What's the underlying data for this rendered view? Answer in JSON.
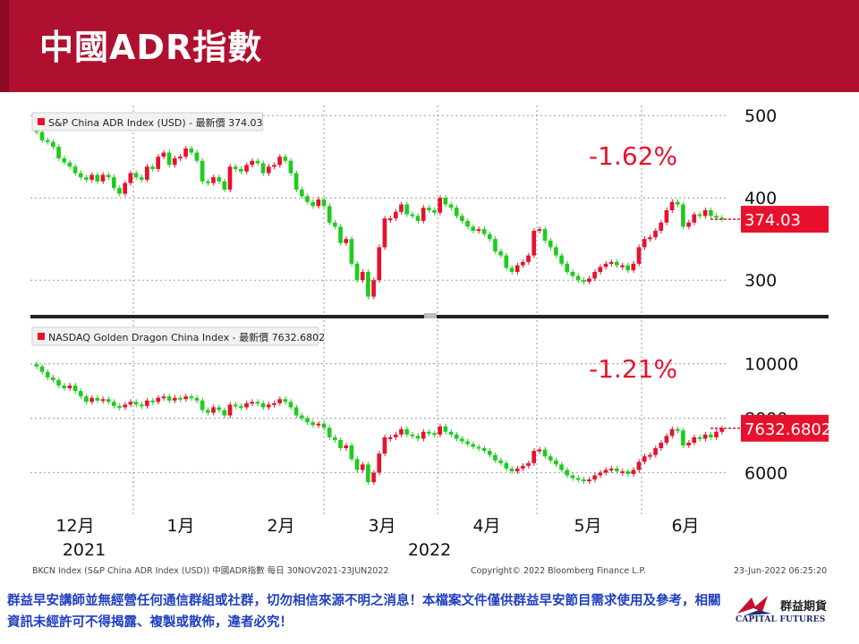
{
  "slide": {
    "title": "中國ADR指數",
    "footer_note": "群益早安講師並無經營任何通信群組或社群，切勿相信來源不明之消息！本檔案文件僅供群益早安節目需求使用及參考，相關資訊未經許可不得揭露、複製或散佈，違者必究！",
    "logo_cn": "群益期貨",
    "logo_en": "CAPITAL FUTURES"
  },
  "chart_data": [
    {
      "type": "candlestick",
      "legend": "S&P China ADR Index (USD) - 最新價 374.03",
      "last_value_label": "374.03",
      "change_annotation": "-1.62%",
      "ylim": [
        260,
        510
      ],
      "yticks": [
        300,
        400,
        500
      ],
      "ytick_labels": [
        "300",
        "400",
        "500"
      ],
      "close": [
        480,
        470,
        468,
        462,
        448,
        443,
        438,
        430,
        425,
        422,
        428,
        420,
        428,
        425,
        412,
        405,
        418,
        430,
        425,
        422,
        438,
        435,
        450,
        455,
        440,
        448,
        450,
        460,
        455,
        445,
        420,
        418,
        425,
        420,
        410,
        438,
        435,
        432,
        440,
        445,
        442,
        430,
        438,
        440,
        450,
        445,
        430,
        410,
        402,
        395,
        390,
        398,
        390,
        370,
        365,
        345,
        350,
        320,
        300,
        310,
        280,
        300,
        340,
        375,
        375,
        383,
        392,
        380,
        378,
        372,
        388,
        385,
        382,
        400,
        392,
        388,
        378,
        372,
        365,
        360,
        362,
        356,
        350,
        335,
        330,
        315,
        310,
        318,
        322,
        330,
        360,
        362,
        348,
        340,
        330,
        320,
        310,
        305,
        300,
        298,
        302,
        310,
        316,
        320,
        322,
        318,
        318,
        312,
        320,
        340,
        350,
        352,
        360,
        370,
        385,
        395,
        392,
        365,
        370,
        380,
        378,
        385,
        378,
        376,
        374
      ],
      "x_month_labels": [
        "12月",
        "1月",
        "2月",
        "3月",
        "4月",
        "5月",
        "6月"
      ],
      "x_year_labels": [
        "2021",
        "2022"
      ]
    },
    {
      "type": "candlestick",
      "legend": "NASDAQ Golden Dragon China Index - 最新價 7632.6802",
      "last_value_label": "7632.6802",
      "change_annotation": "-1.21%",
      "ylim": [
        4700,
        11600
      ],
      "yticks": [
        6000,
        8000,
        10000
      ],
      "ytick_labels": [
        "6000",
        "8000",
        "10000"
      ],
      "close": [
        9900,
        9700,
        9500,
        9400,
        9200,
        9100,
        9200,
        9000,
        8800,
        8600,
        8750,
        8650,
        8700,
        8600,
        8450,
        8400,
        8500,
        8600,
        8500,
        8450,
        8650,
        8600,
        8750,
        8800,
        8650,
        8750,
        8700,
        8800,
        8750,
        8650,
        8300,
        8200,
        8400,
        8300,
        8100,
        8500,
        8450,
        8400,
        8550,
        8600,
        8550,
        8400,
        8500,
        8550,
        8700,
        8600,
        8400,
        8100,
        8000,
        7850,
        7750,
        7800,
        7650,
        7300,
        7200,
        6900,
        7000,
        6500,
        6100,
        6300,
        5650,
        6000,
        6700,
        7300,
        7300,
        7400,
        7600,
        7400,
        7350,
        7250,
        7500,
        7450,
        7400,
        7700,
        7500,
        7400,
        7250,
        7150,
        7050,
        6950,
        6900,
        6800,
        6650,
        6450,
        6350,
        6150,
        6050,
        6150,
        6250,
        6350,
        6800,
        6850,
        6600,
        6450,
        6300,
        6100,
        5900,
        5800,
        5750,
        5700,
        5750,
        5900,
        6000,
        6100,
        6150,
        6050,
        6050,
        5950,
        6100,
        6400,
        6600,
        6650,
        6900,
        7100,
        7350,
        7600,
        7550,
        7000,
        7100,
        7300,
        7250,
        7400,
        7300,
        7500,
        7632
      ]
    }
  ],
  "source_left": "BKCN Index (S&P China ADR Index (USD)) 中國ADR指數  每日 30NOV2021-23JUN2022",
  "source_center": "Copyright© 2022 Bloomberg Finance L.P.",
  "source_right": "23-Jun-2022 06:25:20"
}
